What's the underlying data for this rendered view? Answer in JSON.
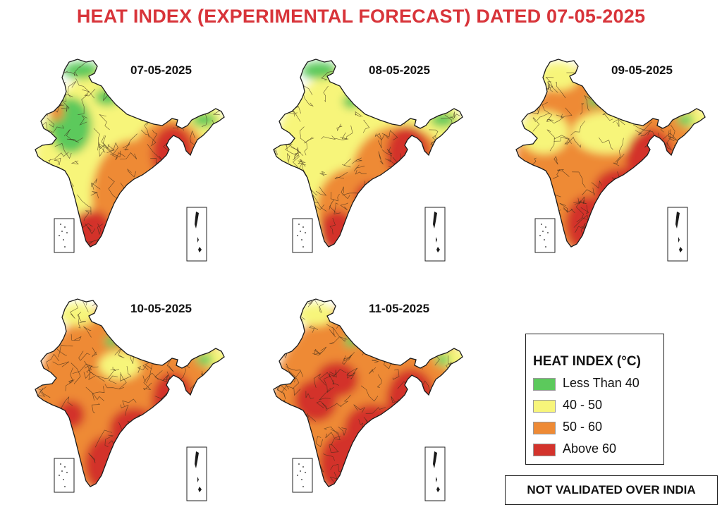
{
  "title": "HEAT INDEX (EXPERIMENTAL FORECAST) DATED 07-05-2025",
  "panels": [
    {
      "date": "07-05-2025",
      "dominant": "mixed-yellow-green-west, orange-red-east"
    },
    {
      "date": "08-05-2025",
      "dominant": "yellow-north, orange-red-south-east"
    },
    {
      "date": "09-05-2025",
      "dominant": "orange-red"
    },
    {
      "date": "10-05-2025",
      "dominant": "orange-red"
    },
    {
      "date": "11-05-2025",
      "dominant": "orange-red"
    }
  ],
  "legend": {
    "title": "HEAT INDEX (°C)",
    "items": [
      {
        "label": "Less Than 40",
        "color": "#5cc95c"
      },
      {
        "label": "40 - 50",
        "color": "#f7f57a"
      },
      {
        "label": "50 - 60",
        "color": "#ee8a35"
      },
      {
        "label": "Above 60",
        "color": "#d3332c"
      }
    ]
  },
  "notice": "NOT VALIDATED OVER INDIA",
  "colors": {
    "title": "#d8343a",
    "green": "#5cc95c",
    "yellow": "#f7f57a",
    "orange": "#ee8a35",
    "red": "#d3332c"
  }
}
